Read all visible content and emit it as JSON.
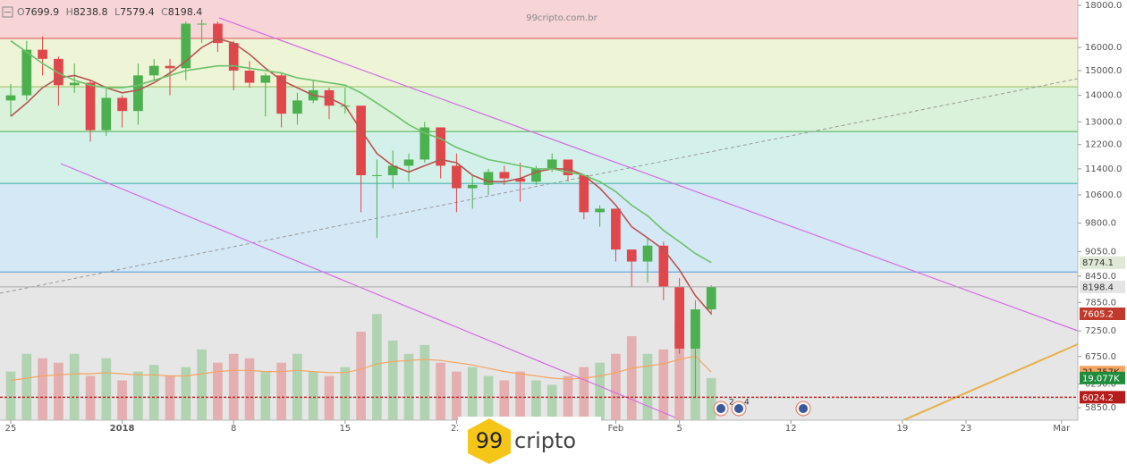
{
  "chart_data": {
    "type": "candlestick",
    "watermark": "99cripto.com.br",
    "brand": {
      "prefix": "99",
      "name": "cripto"
    },
    "ohlc_prefixes": [
      "O",
      "H",
      "L",
      "C"
    ],
    "x": [
      0,
      1,
      2,
      3,
      4,
      5,
      6,
      7,
      8,
      9,
      10,
      11,
      12,
      13,
      14,
      15,
      16,
      17,
      18,
      19,
      20,
      21,
      22,
      23,
      24,
      25,
      26,
      27,
      28,
      29,
      30,
      31,
      32,
      33,
      34,
      35,
      36,
      37,
      38,
      39,
      40,
      41,
      42,
      43,
      44
    ],
    "open": [
      13800,
      14000,
      15900,
      15500,
      14400,
      14500,
      12700,
      13900,
      13400,
      14800,
      15200,
      15100,
      17100,
      17100,
      16200,
      15000,
      14500,
      14800,
      13300,
      13800,
      14200,
      13600,
      13600,
      11200,
      11200,
      11500,
      11700,
      12800,
      11500,
      10800,
      10900,
      11300,
      11100,
      11000,
      11400,
      11700,
      11200,
      10100,
      10200,
      9100,
      8800,
      9200,
      8200,
      6900,
      7699.9
    ],
    "high": [
      14450,
      16300,
      16500,
      15600,
      15300,
      14600,
      14300,
      14000,
      15300,
      15500,
      15500,
      17200,
      17300,
      17200,
      16300,
      15400,
      14900,
      14900,
      14100,
      14600,
      14300,
      14300,
      13600,
      11700,
      12000,
      11900,
      13000,
      12800,
      11900,
      11200,
      11400,
      11500,
      11600,
      11500,
      11900,
      11700,
      11200,
      10300,
      10200,
      9100,
      9400,
      9300,
      8400,
      7900,
      8238.8
    ],
    "low": [
      13200,
      13800,
      14800,
      13600,
      14100,
      12300,
      12500,
      12800,
      12900,
      14600,
      14000,
      14600,
      16200,
      15800,
      14200,
      14300,
      13200,
      12800,
      12900,
      13700,
      13100,
      13300,
      10100,
      9400,
      10800,
      11000,
      11600,
      11100,
      10100,
      10200,
      10600,
      10900,
      10400,
      10900,
      11300,
      11000,
      9900,
      9700,
      8800,
      8200,
      8300,
      7900,
      6800,
      6024.2,
      7579.4
    ],
    "close": [
      14000,
      15900,
      15500,
      14400,
      14500,
      12700,
      13900,
      13400,
      14800,
      15200,
      15100,
      17100,
      17100,
      16200,
      15000,
      14500,
      14800,
      13300,
      13800,
      14200,
      13600,
      13600,
      11200,
      11200,
      11500,
      11700,
      12800,
      11500,
      10800,
      10900,
      11300,
      11100,
      11000,
      11400,
      11700,
      11200,
      10100,
      10200,
      9100,
      8800,
      9200,
      8200,
      6900,
      7700,
      8198.4
    ],
    "up_color": "#4caf50",
    "down_color": "#e0474c",
    "series": [
      {
        "color": "#b85450",
        "values": [
          13200,
          13700,
          14300,
          14700,
          14800,
          14600,
          14300,
          14100,
          14200,
          14500,
          14900,
          15400,
          16000,
          16400,
          16200,
          15700,
          15100,
          14600,
          14300,
          14000,
          13900,
          13600,
          12700,
          11900,
          11500,
          11300,
          11500,
          11700,
          11600,
          11200,
          11000,
          11000,
          11100,
          11300,
          11400,
          11400,
          11200,
          10800,
          10300,
          9700,
          9400,
          9100,
          8600,
          8000,
          7605.2
        ]
      },
      {
        "color": "#6cc16c",
        "values": [
          16300,
          15800,
          15300,
          14900,
          14600,
          14400,
          14300,
          14300,
          14400,
          14600,
          14800,
          15000,
          15100,
          15200,
          15200,
          15100,
          15000,
          14900,
          14700,
          14600,
          14500,
          14400,
          14100,
          13700,
          13300,
          12900,
          12600,
          12400,
          12100,
          11900,
          11700,
          11600,
          11500,
          11400,
          11400,
          11300,
          11200,
          11000,
          10700,
          10300,
          10000,
          9600,
          9300,
          9000,
          8774.1
        ]
      }
    ],
    "volume": {
      "values": [
        22000,
        30000,
        28000,
        26000,
        30000,
        20000,
        28000,
        18000,
        22000,
        25000,
        20000,
        24000,
        32000,
        26000,
        30000,
        28000,
        22000,
        26000,
        30000,
        22000,
        20000,
        24000,
        40000,
        48000,
        36000,
        30000,
        34000,
        26000,
        22000,
        24000,
        20000,
        18000,
        22000,
        18000,
        16000,
        20000,
        24000,
        26000,
        30000,
        38000,
        30000,
        32000,
        44000,
        48000,
        19077
      ],
      "last_label": "19.077K",
      "ma_values": [
        18000,
        19000,
        20000,
        20500,
        21000,
        21000,
        21500,
        21000,
        20500,
        20500,
        20000,
        20000,
        21000,
        22000,
        22500,
        22500,
        22000,
        22000,
        22500,
        22000,
        21500,
        21500,
        23000,
        25500,
        26500,
        27000,
        27500,
        27000,
        26000,
        25000,
        23500,
        22000,
        21000,
        20000,
        19000,
        18500,
        19000,
        20000,
        21500,
        23500,
        24500,
        25500,
        27500,
        29000,
        21757
      ],
      "ma_last_label": "21.757K",
      "ma_color": "#f4a460"
    },
    "volume_ylim": [
      0,
      190000
    ],
    "xlim": [
      -0.674,
      67.02
    ],
    "xticks": [
      {
        "value": 0,
        "label": "25"
      },
      {
        "value": 7,
        "label": "2018"
      },
      {
        "value": 14,
        "label": "8"
      },
      {
        "value": 21,
        "label": "15"
      },
      {
        "value": 28,
        "label": "22"
      },
      {
        "value": 38,
        "label": "Feb"
      },
      {
        "value": 42,
        "label": "5"
      },
      {
        "value": 49,
        "label": "12"
      },
      {
        "value": 56,
        "label": "19"
      },
      {
        "value": 60,
        "label": "23"
      },
      {
        "value": 66,
        "label": "Mar"
      }
    ],
    "ylim": [
      5650,
      18270
    ],
    "log_scale": true,
    "yticks": [
      {
        "value": 18000,
        "label": "18000.0"
      },
      {
        "value": 16000,
        "label": "16000.0"
      },
      {
        "value": 15000,
        "label": "15000.0"
      },
      {
        "value": 14000,
        "label": "14000.0"
      },
      {
        "value": 13000,
        "label": "13000.0"
      },
      {
        "value": 12200,
        "label": "12200.0"
      },
      {
        "value": 11400,
        "label": "11400.0"
      },
      {
        "value": 10600,
        "label": "10600.0"
      },
      {
        "value": 9800,
        "label": "9800.0"
      },
      {
        "value": 9050,
        "label": "9050.0"
      },
      {
        "value": 8450,
        "label": "8450.0"
      },
      {
        "value": 7850,
        "label": "7850.0"
      },
      {
        "value": 7250,
        "label": "7250.0"
      },
      {
        "value": 6750,
        "label": "6750.0"
      },
      {
        "value": 6250,
        "label": "6250.0"
      },
      {
        "value": 5850,
        "label": "5850.0"
      }
    ],
    "fib_levels": [
      {
        "value": 16410,
        "color": "#e07070"
      },
      {
        "value": 14338,
        "color": "#a5c46a"
      },
      {
        "value": 12654,
        "color": "#66bb6a"
      },
      {
        "value": 10945,
        "color": "#4db6ac"
      },
      {
        "value": 8546,
        "color": "#6fa8dc"
      }
    ],
    "fib_band_colors": [
      "#f7d4d6",
      "#eef4d6",
      "#d9f2d9",
      "#d3f1ea",
      "#d5e8f6",
      "#e6e6e6"
    ],
    "event_badges": [
      "2",
      "4"
    ]
  }
}
